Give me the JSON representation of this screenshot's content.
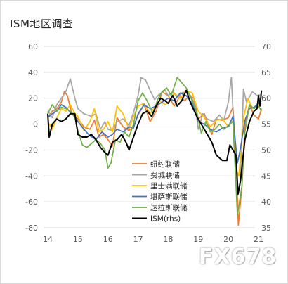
{
  "chart_data": {
    "type": "line",
    "title": "ISM地区调查",
    "x_ticks": [
      "14",
      "15",
      "16",
      "17",
      "18",
      "19",
      "20",
      "21"
    ],
    "x_start": 2014.0,
    "x_end": 2021.0,
    "ylim_left": [
      -80,
      60
    ],
    "ylim_right": [
      35,
      70
    ],
    "yticks_left": [
      60,
      40,
      20,
      0,
      -20,
      -40,
      -60,
      -80
    ],
    "yticks_right": [
      70,
      65,
      60,
      55,
      50,
      45,
      40,
      35
    ],
    "grid": "horizontal",
    "legend_position": "bottom-center",
    "series": [
      {
        "name": "纽约联储",
        "axis": "left",
        "color": "#ed7d31",
        "points": [
          [
            2014.0,
            5
          ],
          [
            2014.15,
            10
          ],
          [
            2014.3,
            12
          ],
          [
            2014.45,
            17
          ],
          [
            2014.55,
            25
          ],
          [
            2014.65,
            22
          ],
          [
            2014.8,
            8
          ],
          [
            2015.0,
            4
          ],
          [
            2015.2,
            -2
          ],
          [
            2015.4,
            -4
          ],
          [
            2015.55,
            3
          ],
          [
            2015.7,
            -10
          ],
          [
            2015.85,
            -8
          ],
          [
            2016.0,
            -12
          ],
          [
            2016.15,
            -17
          ],
          [
            2016.3,
            5
          ],
          [
            2016.5,
            -2
          ],
          [
            2016.7,
            -5
          ],
          [
            2016.85,
            -2
          ],
          [
            2017.0,
            7
          ],
          [
            2017.2,
            15
          ],
          [
            2017.4,
            2
          ],
          [
            2017.6,
            10
          ],
          [
            2017.8,
            25
          ],
          [
            2018.0,
            22
          ],
          [
            2018.2,
            14
          ],
          [
            2018.4,
            22
          ],
          [
            2018.55,
            18
          ],
          [
            2018.7,
            22
          ],
          [
            2018.85,
            20
          ],
          [
            2019.0,
            4
          ],
          [
            2019.2,
            8
          ],
          [
            2019.45,
            -8
          ],
          [
            2019.6,
            4
          ],
          [
            2019.8,
            3
          ],
          [
            2020.0,
            5
          ],
          [
            2020.15,
            13
          ],
          [
            2020.25,
            -22
          ],
          [
            2020.33,
            -78
          ],
          [
            2020.45,
            -48
          ],
          [
            2020.55,
            0
          ],
          [
            2020.7,
            15
          ],
          [
            2020.85,
            7
          ],
          [
            2021.0,
            4
          ],
          [
            2021.1,
            12
          ]
        ]
      },
      {
        "name": "费城联储",
        "axis": "left",
        "color": "#a5a5a5",
        "points": [
          [
            2014.0,
            10
          ],
          [
            2014.15,
            5
          ],
          [
            2014.3,
            15
          ],
          [
            2014.45,
            20
          ],
          [
            2014.6,
            25
          ],
          [
            2014.75,
            35
          ],
          [
            2014.9,
            20
          ],
          [
            2015.0,
            12
          ],
          [
            2015.2,
            8
          ],
          [
            2015.45,
            6
          ],
          [
            2015.6,
            8
          ],
          [
            2015.75,
            -4
          ],
          [
            2015.9,
            2
          ],
          [
            2016.0,
            -4
          ],
          [
            2016.15,
            -5
          ],
          [
            2016.3,
            2
          ],
          [
            2016.5,
            4
          ],
          [
            2016.7,
            -1
          ],
          [
            2016.85,
            9
          ],
          [
            2017.0,
            22
          ],
          [
            2017.1,
            36
          ],
          [
            2017.25,
            34
          ],
          [
            2017.4,
            26
          ],
          [
            2017.55,
            19
          ],
          [
            2017.7,
            23
          ],
          [
            2017.9,
            26
          ],
          [
            2018.0,
            22
          ],
          [
            2018.15,
            25
          ],
          [
            2018.3,
            21
          ],
          [
            2018.45,
            24
          ],
          [
            2018.6,
            25
          ],
          [
            2018.75,
            22
          ],
          [
            2018.9,
            14
          ],
          [
            2019.0,
            -4
          ],
          [
            2019.15,
            8
          ],
          [
            2019.3,
            4
          ],
          [
            2019.5,
            2
          ],
          [
            2019.7,
            7
          ],
          [
            2019.85,
            3
          ],
          [
            2020.0,
            17
          ],
          [
            2020.1,
            36
          ],
          [
            2020.2,
            -13
          ],
          [
            2020.3,
            -56
          ],
          [
            2020.4,
            -43
          ],
          [
            2020.5,
            27
          ],
          [
            2020.6,
            17
          ],
          [
            2020.8,
            25
          ],
          [
            2020.95,
            22
          ],
          [
            2021.1,
            23
          ]
        ]
      },
      {
        "name": "里士满联储",
        "axis": "left",
        "color": "#ffc000",
        "points": [
          [
            2014.0,
            2
          ],
          [
            2014.15,
            -4
          ],
          [
            2014.3,
            5
          ],
          [
            2014.45,
            12
          ],
          [
            2014.6,
            10
          ],
          [
            2014.75,
            15
          ],
          [
            2014.9,
            8
          ],
          [
            2015.0,
            6
          ],
          [
            2015.2,
            -5
          ],
          [
            2015.4,
            2
          ],
          [
            2015.55,
            12
          ],
          [
            2015.7,
            -6
          ],
          [
            2015.85,
            -4
          ],
          [
            2016.0,
            2
          ],
          [
            2016.15,
            -6
          ],
          [
            2016.3,
            14
          ],
          [
            2016.5,
            8
          ],
          [
            2016.7,
            -4
          ],
          [
            2016.85,
            6
          ],
          [
            2017.0,
            14
          ],
          [
            2017.2,
            16
          ],
          [
            2017.4,
            8
          ],
          [
            2017.55,
            13
          ],
          [
            2017.7,
            18
          ],
          [
            2017.9,
            15
          ],
          [
            2018.0,
            17
          ],
          [
            2018.2,
            24
          ],
          [
            2018.4,
            20
          ],
          [
            2018.6,
            26
          ],
          [
            2018.8,
            24
          ],
          [
            2019.0,
            10
          ],
          [
            2019.2,
            5
          ],
          [
            2019.4,
            -2
          ],
          [
            2019.6,
            3
          ],
          [
            2019.8,
            4
          ],
          [
            2020.0,
            -2
          ],
          [
            2020.15,
            3
          ],
          [
            2020.25,
            -35
          ],
          [
            2020.35,
            -40
          ],
          [
            2020.5,
            5
          ],
          [
            2020.65,
            20
          ],
          [
            2020.8,
            12
          ],
          [
            2020.95,
            15
          ],
          [
            2021.1,
            16
          ]
        ]
      },
      {
        "name": "堪萨斯联储",
        "axis": "left",
        "color": "#4472c4",
        "points": [
          [
            2014.0,
            5
          ],
          [
            2014.15,
            8
          ],
          [
            2014.3,
            10
          ],
          [
            2014.45,
            15
          ],
          [
            2014.6,
            13
          ],
          [
            2014.75,
            9
          ],
          [
            2014.9,
            6
          ],
          [
            2015.0,
            2
          ],
          [
            2015.2,
            -4
          ],
          [
            2015.4,
            -9
          ],
          [
            2015.6,
            -12
          ],
          [
            2015.8,
            -6
          ],
          [
            2016.0,
            -10
          ],
          [
            2016.15,
            -8
          ],
          [
            2016.3,
            -4
          ],
          [
            2016.5,
            -6
          ],
          [
            2016.7,
            -2
          ],
          [
            2016.85,
            -3
          ],
          [
            2017.0,
            8
          ],
          [
            2017.2,
            15
          ],
          [
            2017.4,
            12
          ],
          [
            2017.6,
            14
          ],
          [
            2017.8,
            17
          ],
          [
            2018.0,
            20
          ],
          [
            2018.2,
            18
          ],
          [
            2018.4,
            24
          ],
          [
            2018.6,
            22
          ],
          [
            2018.8,
            16
          ],
          [
            2019.0,
            2
          ],
          [
            2019.2,
            0
          ],
          [
            2019.4,
            -4
          ],
          [
            2019.6,
            -6
          ],
          [
            2019.8,
            -3
          ],
          [
            2020.0,
            -2
          ],
          [
            2020.15,
            6
          ],
          [
            2020.3,
            -30
          ],
          [
            2020.4,
            -19
          ],
          [
            2020.55,
            3
          ],
          [
            2020.7,
            12
          ],
          [
            2020.85,
            13
          ],
          [
            2021.0,
            16
          ],
          [
            2021.1,
            18
          ]
        ]
      },
      {
        "name": "达拉斯联储",
        "axis": "left",
        "color": "#70ad47",
        "points": [
          [
            2014.0,
            8
          ],
          [
            2014.15,
            15
          ],
          [
            2014.3,
            10
          ],
          [
            2014.45,
            13
          ],
          [
            2014.6,
            12
          ],
          [
            2014.75,
            10
          ],
          [
            2014.9,
            5
          ],
          [
            2015.0,
            -5
          ],
          [
            2015.15,
            -16
          ],
          [
            2015.3,
            -18
          ],
          [
            2015.45,
            -15
          ],
          [
            2015.6,
            -12
          ],
          [
            2015.75,
            -15
          ],
          [
            2015.9,
            -20
          ],
          [
            2016.0,
            -34
          ],
          [
            2016.1,
            -30
          ],
          [
            2016.25,
            -12
          ],
          [
            2016.4,
            -14
          ],
          [
            2016.55,
            -6
          ],
          [
            2016.7,
            -10
          ],
          [
            2016.85,
            0
          ],
          [
            2017.0,
            18
          ],
          [
            2017.15,
            24
          ],
          [
            2017.3,
            18
          ],
          [
            2017.5,
            8
          ],
          [
            2017.65,
            19
          ],
          [
            2017.8,
            25
          ],
          [
            2017.95,
            28
          ],
          [
            2018.1,
            22
          ],
          [
            2018.3,
            36
          ],
          [
            2018.45,
            32
          ],
          [
            2018.6,
            28
          ],
          [
            2018.8,
            18
          ],
          [
            2018.95,
            9
          ],
          [
            2019.1,
            -7
          ],
          [
            2019.25,
            2
          ],
          [
            2019.4,
            -6
          ],
          [
            2019.55,
            -4
          ],
          [
            2019.7,
            0
          ],
          [
            2019.85,
            -4
          ],
          [
            2020.0,
            -1
          ],
          [
            2020.15,
            2
          ],
          [
            2020.3,
            -70
          ],
          [
            2020.45,
            -48
          ],
          [
            2020.55,
            -6
          ],
          [
            2020.7,
            15
          ],
          [
            2020.85,
            12
          ],
          [
            2021.0,
            14
          ],
          [
            2021.1,
            10
          ]
        ]
      },
      {
        "name": "ISM(rhs)",
        "axis": "right",
        "color": "#000000",
        "points": [
          [
            2014.0,
            57
          ],
          [
            2014.05,
            52.5
          ],
          [
            2014.15,
            55
          ],
          [
            2014.3,
            56
          ],
          [
            2014.45,
            55.5
          ],
          [
            2014.6,
            56
          ],
          [
            2014.75,
            57
          ],
          [
            2014.9,
            57
          ],
          [
            2015.0,
            53
          ],
          [
            2015.15,
            52.5
          ],
          [
            2015.3,
            52.5
          ],
          [
            2015.45,
            53
          ],
          [
            2015.6,
            52
          ],
          [
            2015.75,
            50.5
          ],
          [
            2015.9,
            49.5
          ],
          [
            2016.0,
            49
          ],
          [
            2016.15,
            51.5
          ],
          [
            2016.3,
            52
          ],
          [
            2016.45,
            53
          ],
          [
            2016.6,
            51.5
          ],
          [
            2016.7,
            50
          ],
          [
            2016.85,
            52.5
          ],
          [
            2017.0,
            55
          ],
          [
            2017.15,
            57
          ],
          [
            2017.3,
            57.5
          ],
          [
            2017.45,
            56.5
          ],
          [
            2017.6,
            58.5
          ],
          [
            2017.75,
            60
          ],
          [
            2017.9,
            59.5
          ],
          [
            2018.0,
            59
          ],
          [
            2018.15,
            60.5
          ],
          [
            2018.3,
            58.5
          ],
          [
            2018.45,
            59.5
          ],
          [
            2018.6,
            61.5
          ],
          [
            2018.75,
            59
          ],
          [
            2018.95,
            56.5
          ],
          [
            2019.1,
            55
          ],
          [
            2019.3,
            53
          ],
          [
            2019.45,
            51.5
          ],
          [
            2019.6,
            49
          ],
          [
            2019.8,
            48
          ],
          [
            2019.95,
            48
          ],
          [
            2020.05,
            51
          ],
          [
            2020.15,
            50
          ],
          [
            2020.25,
            49
          ],
          [
            2020.32,
            41.5
          ],
          [
            2020.4,
            44
          ],
          [
            2020.55,
            52
          ],
          [
            2020.7,
            55.5
          ],
          [
            2020.85,
            57.5
          ],
          [
            2020.95,
            58
          ],
          [
            2021.0,
            60.5
          ],
          [
            2021.05,
            58.5
          ],
          [
            2021.1,
            61.5
          ]
        ]
      }
    ]
  },
  "watermark": "FX678"
}
